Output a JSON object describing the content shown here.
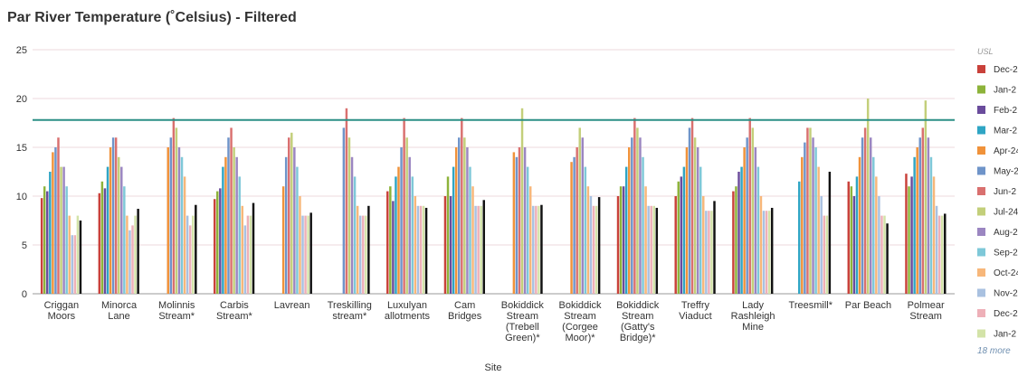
{
  "chart_data": {
    "type": "bar",
    "title": "Par River Temperature (˚Celsius) - Filtered",
    "x_label": "Site",
    "categories": [
      "Criggan\nMoors",
      "Minorca\nLane",
      "Molinnis\nStream*",
      "Carbis\nStream*",
      "Lavrean",
      "Treskilling\nstream*",
      "Luxulyan\nallotments",
      "Cam\nBridges",
      "Bokiddick\nStream\n(Trebell\nGreen)*",
      "Bokiddick\nStream\n(Corgee\nMoor)*",
      "Bokiddick\nStream\n(Gatty's\nBridge)*",
      "Treffry\nViaduct",
      "Lady\nRashleigh\nMine",
      "Treesmill*",
      "Par Beach",
      "Polmear\nStream"
    ],
    "ylim": [
      0,
      25
    ],
    "yticks": [
      0,
      5,
      10,
      15,
      20,
      25
    ],
    "grid": true,
    "reference_lines": [
      {
        "label": "USL",
        "value": 17.8,
        "color": "#2b8f85"
      }
    ],
    "legend_more": "18 more",
    "series": [
      {
        "name": "Dec-2",
        "color": "#c9413a",
        "values": [
          9.8,
          10.3,
          null,
          9.7,
          null,
          null,
          10.5,
          10,
          null,
          null,
          10,
          10,
          10.5,
          null,
          11.5,
          12.3
        ]
      },
      {
        "name": "Jan-2",
        "color": "#8db33a",
        "values": [
          11,
          11.5,
          null,
          10.5,
          null,
          null,
          11,
          12,
          null,
          null,
          11,
          11.5,
          11,
          null,
          11,
          11
        ]
      },
      {
        "name": "Feb-2",
        "color": "#6a4c9c",
        "values": [
          10.5,
          10.8,
          null,
          10.8,
          null,
          null,
          9.5,
          10,
          null,
          null,
          11,
          12,
          12.5,
          null,
          10,
          12
        ]
      },
      {
        "name": "Mar-2",
        "color": "#2fa5c4",
        "values": [
          12.5,
          13,
          null,
          13,
          null,
          null,
          12,
          13,
          null,
          null,
          13,
          13,
          13,
          11.5,
          12,
          14
        ]
      },
      {
        "name": "Apr-24",
        "color": "#f0923a",
        "values": [
          14.5,
          15,
          15,
          14,
          11,
          null,
          13,
          15,
          14.5,
          13.5,
          15,
          15,
          15,
          14,
          14,
          15
        ]
      },
      {
        "name": "May-2",
        "color": "#6f94c9",
        "values": [
          15,
          16,
          16,
          16,
          14,
          17,
          15,
          16,
          14,
          14,
          16,
          17,
          16,
          15.5,
          16,
          16
        ]
      },
      {
        "name": "Jun-2",
        "color": "#d9706f",
        "values": [
          16,
          16,
          18,
          17,
          16,
          19,
          18,
          18,
          15,
          15,
          18,
          18,
          18,
          17,
          17,
          17
        ]
      },
      {
        "name": "Jul-24",
        "color": "#c3cf7a",
        "values": [
          13,
          14,
          17,
          15,
          16.5,
          16,
          16,
          16,
          19,
          17,
          17,
          16,
          17,
          17,
          20,
          19.8
        ]
      },
      {
        "name": "Aug-2",
        "color": "#9b86c1",
        "values": [
          13,
          13,
          15,
          14,
          15,
          14,
          14,
          15,
          15,
          16,
          16,
          15,
          15,
          16,
          16,
          16
        ]
      },
      {
        "name": "Sep-2",
        "color": "#7ec8d8",
        "values": [
          11,
          11,
          14,
          12,
          13,
          12,
          12,
          13,
          13,
          13,
          14,
          13,
          13,
          15,
          14,
          14
        ]
      },
      {
        "name": "Oct-24",
        "color": "#f7b77a",
        "values": [
          8,
          8,
          12,
          9,
          10,
          9,
          10,
          11,
          11,
          11,
          11,
          10,
          10,
          13,
          12,
          12
        ]
      },
      {
        "name": "Nov-2",
        "color": "#a9c1e0",
        "values": [
          6,
          6.5,
          8,
          7,
          8,
          8,
          9,
          9,
          9,
          10,
          9,
          8.5,
          8.5,
          10,
          10,
          9
        ]
      },
      {
        "name": "Dec-2",
        "color": "#eeb0b8",
        "values": [
          6,
          7,
          7,
          8,
          8,
          8,
          9,
          9,
          9,
          9,
          9,
          8.5,
          8.5,
          8,
          8,
          8
        ]
      },
      {
        "name": "Jan-2",
        "color": "#d3e3a8",
        "values": [
          8,
          8,
          8,
          8,
          8,
          8,
          9,
          9,
          9,
          9,
          9,
          8.5,
          8.5,
          8,
          8,
          8
        ]
      },
      {
        "color": "#111111",
        "values": [
          7.5,
          8.7,
          9.1,
          9.3,
          8.3,
          9,
          8.8,
          9.6,
          9.1,
          9.9,
          8.8,
          9.5,
          8.8,
          12.5,
          7.2,
          8.2
        ]
      }
    ]
  }
}
